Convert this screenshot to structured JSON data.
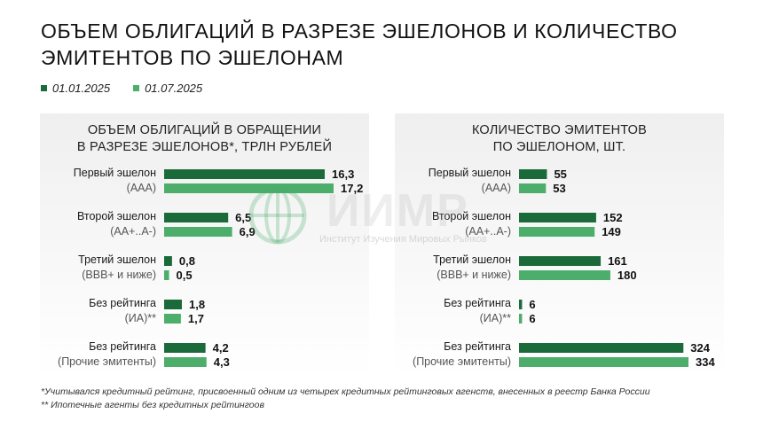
{
  "title": "ОБЪЕМ ОБЛИГАЦИЙ В РАЗРЕЗЕ ЭШЕЛОНОВ И КОЛИЧЕСТВО ЭМИТЕНТОВ ПО ЭШЕЛОНАМ",
  "legend": {
    "series_a": "01.01.2025",
    "series_b": "01.07.2025"
  },
  "colors": {
    "dark_green": "#1b6b3a",
    "light_green": "#4cae6a"
  },
  "watermark": {
    "text": "ИИМР",
    "subtitle": "Институт Изучения Мировых Рынков"
  },
  "footnotes": {
    "note1": "*Учитывался кредитный рейтинг, присвоенный одним из четырех кредитных рейтинговых агенств, внесенных в реестр Банка России",
    "note2": "** Ипотечные агенты без кредитных рейтингоов"
  },
  "chart_data": [
    {
      "type": "bar",
      "orientation": "horizontal",
      "title_line1": "ОБЪЕМ ОБЛИГАЦИЙ В ОБРАЩЕНИИ",
      "title_line2": "В РАЗРЕЗЕ ЭШЕЛОНОВ*, ТРЛН РУБЛЕЙ",
      "categories": [
        {
          "label": "Первый эшелон",
          "sub": "(ААА)"
        },
        {
          "label": "Второй эшелон",
          "sub": "(АА+..А-)"
        },
        {
          "label": "Третий эшелон",
          "sub": "(ВВВ+ и ниже)"
        },
        {
          "label": "Без рейтинга",
          "sub": "(ИА)**"
        },
        {
          "label": "Без рейтинга",
          "sub": "(Прочие эмитенты)"
        }
      ],
      "series": [
        {
          "name": "01.01.2025",
          "values": [
            16.3,
            6.5,
            0.8,
            1.8,
            4.2
          ],
          "labels": [
            "16,3",
            "6,5",
            "0,8",
            "1,8",
            "4,2"
          ]
        },
        {
          "name": "01.07.2025",
          "values": [
            17.2,
            6.9,
            0.5,
            1.7,
            4.3
          ],
          "labels": [
            "17,2",
            "6,9",
            "0,5",
            "1,7",
            "4,3"
          ]
        }
      ],
      "xlim": [
        0,
        17.2
      ]
    },
    {
      "type": "bar",
      "orientation": "horizontal",
      "title_line1": "КОЛИЧЕСТВО ЭМИТЕНТОВ",
      "title_line2": "ПО ЭШЕЛОНОМ, ШТ.",
      "categories": [
        {
          "label": "Первый эшелон",
          "sub": "(ААА)"
        },
        {
          "label": "Второй эшелон",
          "sub": "(АА+..А-)"
        },
        {
          "label": "Третий эшелон",
          "sub": "(ВВВ+ и ниже)"
        },
        {
          "label": "Без рейтинга",
          "sub": "(ИА)**"
        },
        {
          "label": "Без рейтинга",
          "sub": "(Прочие эмитенты)"
        }
      ],
      "series": [
        {
          "name": "01.01.2025",
          "values": [
            55,
            152,
            161,
            6,
            324
          ],
          "labels": [
            "55",
            "152",
            "161",
            "6",
            "324"
          ]
        },
        {
          "name": "01.07.2025",
          "values": [
            53,
            149,
            180,
            6,
            334
          ],
          "labels": [
            "53",
            "149",
            "180",
            "6",
            "334"
          ]
        }
      ],
      "xlim": [
        0,
        334
      ]
    }
  ]
}
